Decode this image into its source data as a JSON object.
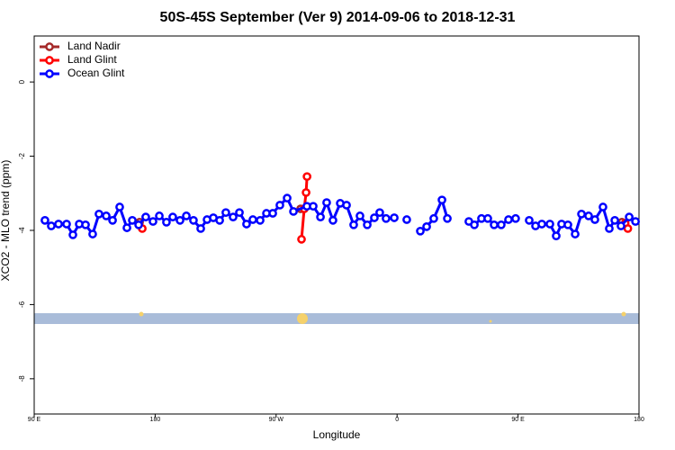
{
  "chart_data": {
    "type": "line",
    "title": "50S-45S September (Ver 9)   2014-09-06 to 2018-12-31",
    "x_label": "Longitude",
    "y_label": "XCO2 - MLO trend (ppm)",
    "xlim": [
      90,
      540
    ],
    "ylim": [
      -8.95,
      1.24
    ],
    "xticks": [
      {
        "value": 90,
        "label": "90 E"
      },
      180,
      {
        "value": 270,
        "label": "90 W"
      },
      {
        "value": 360,
        "label": "0"
      },
      {
        "value": 450,
        "label": "90 E"
      },
      {
        "value": 540,
        "label": "180"
      }
    ],
    "yticks": [
      0,
      -2,
      -4,
      -6,
      -8
    ],
    "grid": false,
    "legend": "top-left",
    "series": [
      {
        "name": "Land Nadir",
        "color": "#a52a2a",
        "x": [
          168.4,
          null,
          288.2,
          null,
          527.3
        ],
        "values": [
          -3.78,
          null,
          -3.42,
          null,
          -3.78
        ]
      },
      {
        "name": "Land Glint",
        "color": "#ff0000",
        "x": [
          170.4,
          null,
          288.9,
          290.9,
          292.3,
          293.0,
          null,
          529.7,
          531.7
        ],
        "values": [
          -3.95,
          null,
          -4.24,
          -3.42,
          -2.98,
          -2.55,
          null,
          -3.81,
          -3.95
        ]
      },
      {
        "name": "Ocean Glint",
        "color": "#0000ff",
        "x": [
          98,
          102.7,
          108.1,
          114.1,
          118.8,
          123.5,
          128.2,
          133.5,
          138.2,
          143.6,
          148.3,
          153.6,
          159,
          163,
          167.7,
          173,
          178.4,
          183.1,
          188.4,
          193.1,
          198.5,
          203.2,
          208.5,
          213.9,
          218.6,
          223.3,
          228,
          232.6,
          238,
          242.7,
          248,
          252.7,
          258.1,
          262.8,
          267.5,
          272.8,
          278.2,
          282.9,
          292.9,
          297.6,
          303,
          307.6,
          312.3,
          317.7,
          322.4,
          327.7,
          332.4,
          337.8,
          343.1,
          347.1,
          351.8,
          357.9,
          null,
          367.2,
          null,
          377.3,
          382,
          387.3,
          393.4,
          397.4,
          null,
          413.4,
          417.5,
          422.8,
          427.5,
          432.2,
          437.5,
          442.9,
          448.2,
          null,
          458.3,
          463,
          467.7,
          473.7,
          478.4,
          482.4,
          487.1,
          492.5,
          497.2,
          502.5,
          507.2,
          513.2,
          517.9,
          522,
          526.6,
          532.7,
          537.4
        ],
        "values": [
          -3.73,
          -3.88,
          -3.83,
          -3.83,
          -4.12,
          -3.83,
          -3.85,
          -4.1,
          -3.56,
          -3.61,
          -3.73,
          -3.37,
          -3.93,
          -3.73,
          -3.85,
          -3.64,
          -3.76,
          -3.61,
          -3.78,
          -3.64,
          -3.73,
          -3.61,
          -3.73,
          -3.95,
          -3.71,
          -3.66,
          -3.73,
          -3.52,
          -3.64,
          -3.52,
          -3.83,
          -3.71,
          -3.73,
          -3.54,
          -3.54,
          -3.32,
          -3.13,
          -3.49,
          -3.35,
          -3.35,
          -3.64,
          -3.25,
          -3.73,
          -3.27,
          -3.32,
          -3.85,
          -3.61,
          -3.85,
          -3.66,
          -3.52,
          -3.68,
          -3.66,
          null,
          -3.71,
          null,
          -4.02,
          -3.9,
          -3.68,
          -3.18,
          -3.68,
          null,
          -3.76,
          -3.85,
          -3.68,
          -3.68,
          -3.85,
          -3.85,
          -3.71,
          -3.68,
          null,
          -3.73,
          -3.88,
          -3.83,
          -3.83,
          -4.15,
          -3.83,
          -3.85,
          -4.1,
          -3.56,
          -3.61,
          -3.71,
          -3.37,
          -3.95,
          -3.73,
          -3.88,
          -3.64,
          -3.76
        ]
      }
    ]
  }
}
